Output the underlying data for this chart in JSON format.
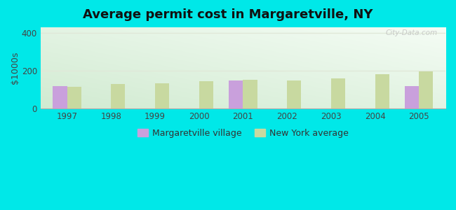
{
  "title_text": "Average permit cost in Margaretville, NY",
  "ylabel": "$1000s",
  "years": [
    1997,
    1998,
    1999,
    2000,
    2001,
    2002,
    2003,
    2004,
    2005
  ],
  "margaretville_values": [
    120,
    null,
    null,
    null,
    148,
    null,
    null,
    null,
    118
  ],
  "ny_average_values": [
    115,
    128,
    132,
    145,
    152,
    148,
    160,
    182,
    197
  ],
  "ylim": [
    0,
    430
  ],
  "yticks": [
    0,
    200,
    400
  ],
  "bar_width": 0.32,
  "margaretville_color": "#c9a0dc",
  "ny_average_color": "#c8d9a0",
  "background_color": "#00e8e8",
  "legend_labels": [
    "Margaretville village",
    "New York average"
  ],
  "watermark": "City-Data.com",
  "grid_color": "#e0e8d8",
  "title_fontsize": 13,
  "tick_fontsize": 8.5
}
